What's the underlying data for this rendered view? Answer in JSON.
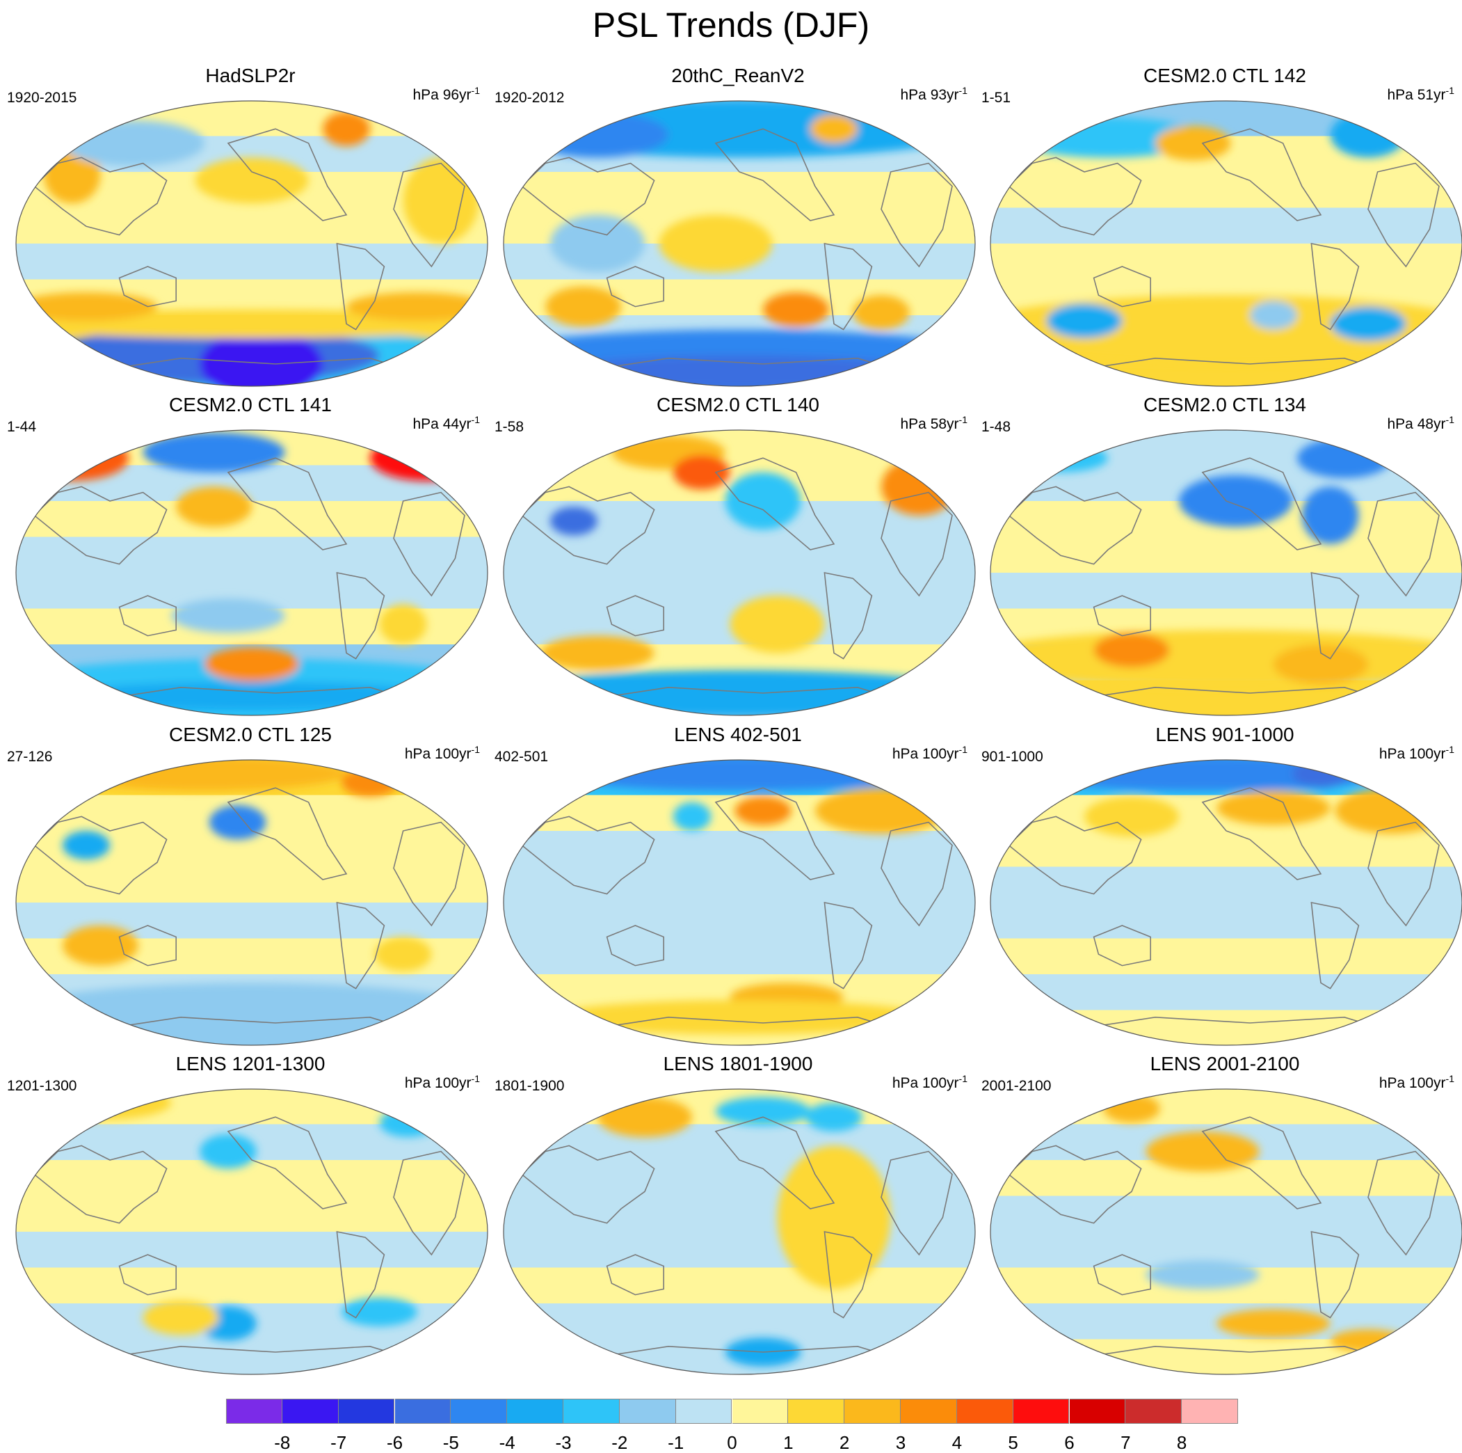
{
  "title": "PSL Trends (DJF)",
  "unit_label": "hPa",
  "panels": [
    {
      "title": "HadSLP2r",
      "period": "1920-2015",
      "per": "96yr",
      "exp": "-1",
      "style": "had"
    },
    {
      "title": "20thC_ReanV2",
      "period": "1920-2012",
      "per": "93yr",
      "exp": "-1",
      "style": "rean"
    },
    {
      "title": "CESM2.0 CTL 142",
      "period": "1-51",
      "per": "51yr",
      "exp": "-1",
      "style": "c142"
    },
    {
      "title": "CESM2.0 CTL 141",
      "period": "1-44",
      "per": "44yr",
      "exp": "-1",
      "style": "c141"
    },
    {
      "title": "CESM2.0 CTL 140",
      "period": "1-58",
      "per": "58yr",
      "exp": "-1",
      "style": "c140"
    },
    {
      "title": "CESM2.0 CTL 134",
      "period": "1-48",
      "per": "48yr",
      "exp": "-1",
      "style": "c134"
    },
    {
      "title": "CESM2.0 CTL 125",
      "period": "27-126",
      "per": "100yr",
      "exp": "-1",
      "style": "c125"
    },
    {
      "title": "LENS 402-501",
      "period": "402-501",
      "per": "100yr",
      "exp": "-1",
      "style": "l402"
    },
    {
      "title": "LENS 901-1000",
      "period": "901-1000",
      "per": "100yr",
      "exp": "-1",
      "style": "l901"
    },
    {
      "title": "LENS 1201-1300",
      "period": "1201-1300",
      "per": "100yr",
      "exp": "-1",
      "style": "l1201"
    },
    {
      "title": "LENS 1801-1900",
      "period": "1801-1900",
      "per": "100yr",
      "exp": "-1",
      "style": "l1801"
    },
    {
      "title": "LENS 2001-2100",
      "period": "2001-2100",
      "per": "100yr",
      "exp": "-1",
      "style": "l2001"
    }
  ],
  "colorbar": {
    "labels": [
      "-8",
      "-7",
      "-6",
      "-5",
      "-4",
      "-3",
      "-2",
      "-1",
      "0",
      "1",
      "2",
      "3",
      "4",
      "5",
      "6",
      "7",
      "8"
    ],
    "colors": [
      "#7b2be8",
      "#3a17f2",
      "#2338e0",
      "#3a6ee0",
      "#2e86f0",
      "#18aaf2",
      "#2ec4f8",
      "#8ecaef",
      "#bde2f3",
      "#fff69a",
      "#fdd835",
      "#fbb81c",
      "#fb8c0a",
      "#fb5a0a",
      "#fe0d0d",
      "#d80000",
      "#cc2c2c",
      "#ffb3b3"
    ]
  },
  "palette": {
    "land_outline": "#7a7a7a",
    "neutral_neg": "#bde2f3",
    "neutral_pos": "#fff69a"
  }
}
